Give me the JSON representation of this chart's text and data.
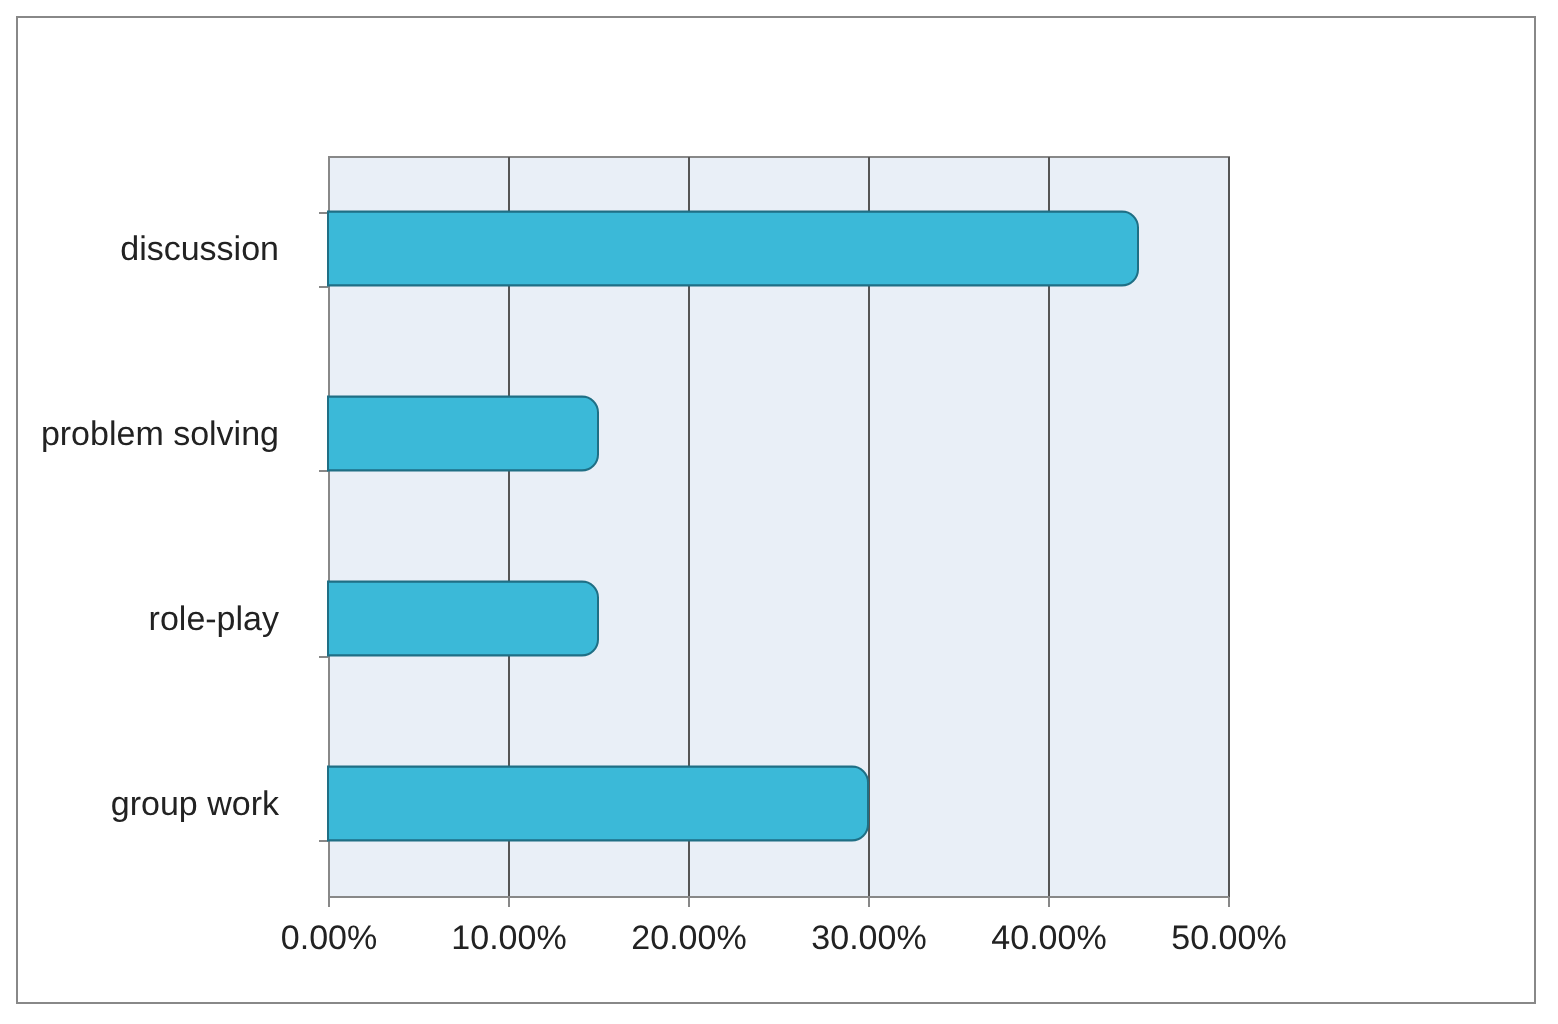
{
  "chart_data": {
    "type": "bar",
    "orientation": "horizontal",
    "categories": [
      "discussion",
      "problem solving",
      "role-play",
      "group work"
    ],
    "values": [
      45,
      15,
      15,
      30
    ],
    "color": "#3bb9d8",
    "xlim": [
      0,
      50
    ],
    "xticks": [
      {
        "value": 0,
        "label": "0.00%"
      },
      {
        "value": 10,
        "label": "10.00%"
      },
      {
        "value": 20,
        "label": "20.00%"
      },
      {
        "value": 30,
        "label": "30.00%"
      },
      {
        "value": 40,
        "label": "40.00%"
      },
      {
        "value": 50,
        "label": "50.00%"
      }
    ],
    "grid": "x"
  }
}
